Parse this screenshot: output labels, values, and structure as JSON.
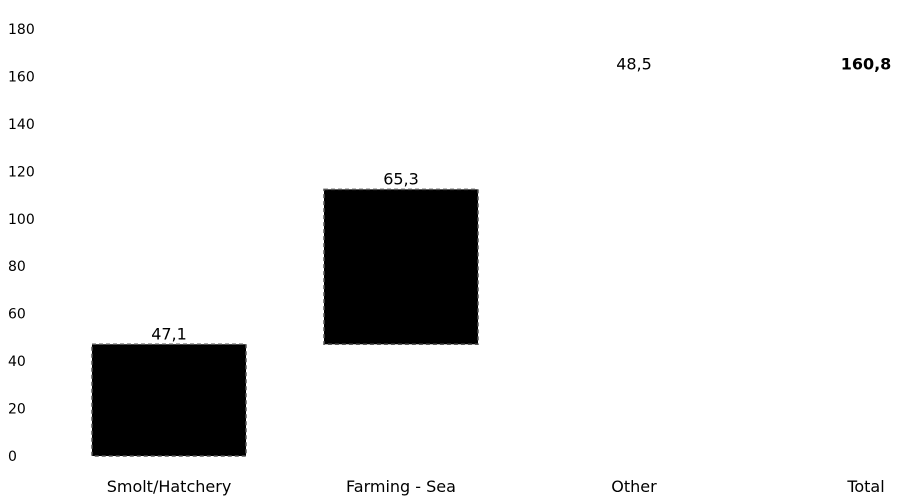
{
  "chart_data": {
    "type": "bar",
    "subtype": "waterfall",
    "categories": [
      "Smolt/Hatchery",
      "Farming - Sea",
      "Other",
      "Total"
    ],
    "values": [
      47.1,
      65.3,
      48.5,
      160.8
    ],
    "value_labels": [
      "47,1",
      "65,3",
      "48,5",
      "160,8"
    ],
    "bar_color": "#000000",
    "bar_border_style": "dashed",
    "bar_visible": [
      true,
      true,
      false,
      false
    ],
    "bold_labels": [
      false,
      false,
      false,
      true
    ],
    "ylim": [
      0,
      180
    ],
    "y_ticks": [
      0,
      20,
      40,
      60,
      80,
      100,
      120,
      140,
      160,
      180
    ],
    "y_tick_labels": [
      "0",
      "20",
      "40",
      "60",
      "80",
      "100",
      "120",
      "140",
      "160",
      "180"
    ],
    "grid": false,
    "legend": "none"
  }
}
